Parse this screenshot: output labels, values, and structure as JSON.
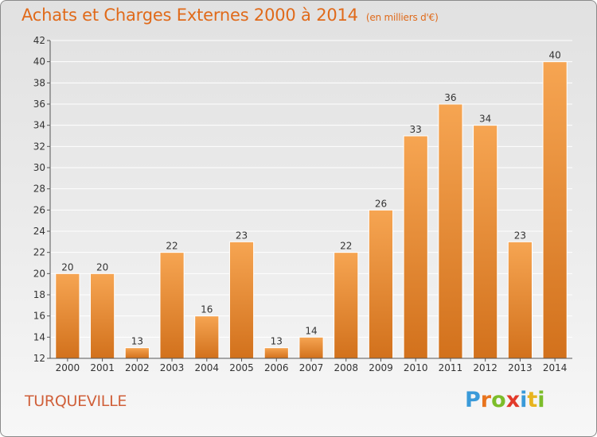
{
  "header": {
    "title": "Achats et Charges Externes 2000 à 2014",
    "subtitle": "(en milliers d'€)"
  },
  "footer": {
    "commune": "TURQUEVILLE",
    "logo": {
      "letters": [
        "P",
        "r",
        "o",
        "x",
        "i",
        "t",
        "i"
      ],
      "colors": [
        "#3a9ad9",
        "#e8741e",
        "#7cbd2a",
        "#e23a2a",
        "#3a9ad9",
        "#e8b41e",
        "#7cbd2a"
      ]
    }
  },
  "chart_data": {
    "type": "bar",
    "title": "Achats et Charges Externes 2000 à 2014",
    "subtitle": "(en milliers d'€)",
    "categories": [
      "2000",
      "2001",
      "2002",
      "2003",
      "2004",
      "2005",
      "2006",
      "2007",
      "2008",
      "2009",
      "2010",
      "2011",
      "2012",
      "2013",
      "2014"
    ],
    "values": [
      20,
      20,
      13,
      22,
      16,
      23,
      13,
      14,
      22,
      26,
      33,
      36,
      34,
      23,
      40
    ],
    "ylim": [
      12,
      42
    ],
    "yticks": [
      12,
      14,
      16,
      18,
      20,
      22,
      24,
      26,
      28,
      30,
      32,
      34,
      36,
      38,
      40,
      42
    ],
    "grid": true,
    "legend": "none",
    "bar_color_top": "#f6a552",
    "bar_color_bottom": "#d2711c"
  }
}
